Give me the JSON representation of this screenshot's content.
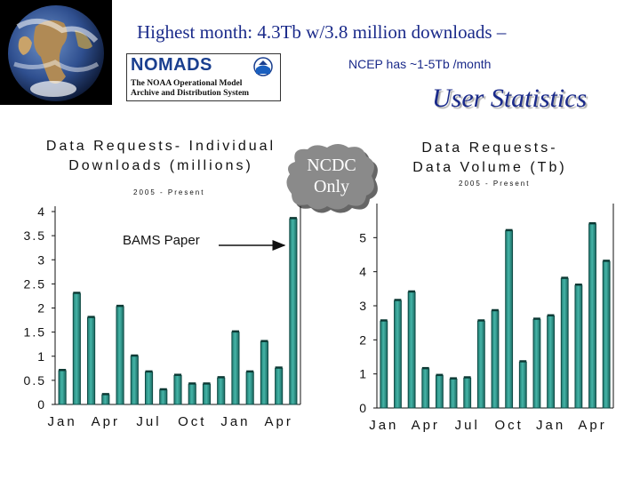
{
  "header": {
    "headline": "Highest month:  4.3Tb    w/3.8 million downloads –",
    "ncep_note": "NCEP has ~1-5Tb /month",
    "section_title": "User Statistics"
  },
  "logo": {
    "title": "NOMADS",
    "subtitle_line1": "The NOAA Operational Model",
    "subtitle_line2": "Archive and Distribution System"
  },
  "badge": {
    "line1": "NCDC",
    "line2": "Only"
  },
  "colors": {
    "bar": "#2f9a90",
    "bar_dark": "#0f4a44",
    "text_blue": "#1a2a8a"
  },
  "chart_data": [
    {
      "type": "bar",
      "title_line1": "Data Requests- Individual",
      "title_line2": "Downloads (millions)",
      "subtitle": "2005 - Present",
      "annotation": "BAMS Paper",
      "ylim": [
        0,
        4
      ],
      "yticks": [
        "0",
        "0.5",
        "1",
        "1.5",
        "2",
        "2.5",
        "3",
        "3.5",
        "4"
      ],
      "xtick_labels": [
        "Jan",
        "Apr",
        "Jul",
        "Oct",
        "Jan",
        "Apr"
      ],
      "values": [
        0.7,
        2.3,
        1.8,
        0.2,
        2.03,
        1.0,
        0.67,
        0.3,
        0.6,
        0.42,
        0.42,
        0.55,
        1.5,
        0.67,
        1.3,
        0.75,
        3.85
      ],
      "grid": false
    },
    {
      "type": "bar",
      "title_line1": "Data Requests-",
      "title_line2": "Data Volume (Tb)",
      "subtitle": "2005 - Present",
      "ylim": [
        0,
        6
      ],
      "yticks": [
        "0",
        "1",
        "2",
        "3",
        "4",
        "5"
      ],
      "xtick_labels": [
        "Jan",
        "Apr",
        "Jul",
        "Oct",
        "Jan",
        "Apr"
      ],
      "values": [
        2.55,
        3.15,
        3.4,
        1.15,
        0.95,
        0.85,
        0.88,
        2.55,
        2.85,
        5.2,
        1.35,
        2.6,
        2.7,
        3.8,
        3.6,
        5.4,
        4.3
      ],
      "grid": false
    }
  ]
}
